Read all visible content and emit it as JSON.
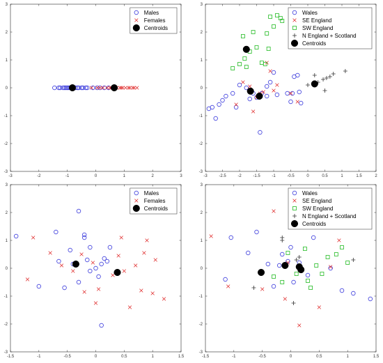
{
  "colors": {
    "males": "#3a3adc",
    "females": "#e03030",
    "se": "#e03030",
    "sw": "#22bb22",
    "nes": "#333333",
    "centroid": "#000000"
  },
  "chart_data": [
    {
      "type": "scatter",
      "xlim": [
        -3,
        3
      ],
      "ylim": [
        -3,
        3
      ],
      "xticks": [
        "-3",
        "-2",
        "-1",
        "0",
        "1",
        "2",
        "3"
      ],
      "yticks": [
        "-3",
        "-2",
        "-1",
        "0",
        "1",
        "2",
        "3"
      ],
      "legend_placement": "top-right",
      "series": [
        {
          "name": "Males",
          "marker": "circle",
          "color": "#3a3adc",
          "x": [
            -1.45,
            -1.3,
            -1.25,
            -1.15,
            -1.1,
            -1.05,
            -1.0,
            -0.95,
            -0.9,
            -0.85,
            -0.78,
            -0.72,
            -0.65,
            -0.6,
            -0.5,
            -0.45,
            -0.35,
            -0.3,
            -0.1,
            0.05,
            0.15,
            0.3,
            0.45
          ],
          "y": [
            0,
            0,
            0,
            0,
            0,
            0,
            0,
            0,
            0,
            0,
            0,
            0,
            0,
            0,
            0,
            0,
            0,
            0,
            0,
            0,
            0,
            0,
            0
          ]
        },
        {
          "name": "Females",
          "marker": "x",
          "color": "#e03030",
          "x": [
            0.05,
            0.15,
            0.25,
            0.4,
            0.5,
            0.55,
            0.6,
            0.7,
            0.75,
            0.85,
            0.9,
            0.95,
            1.05,
            1.15,
            1.2,
            1.3,
            1.35,
            1.45,
            -0.15
          ],
          "y": [
            0,
            0,
            0,
            0,
            0,
            0,
            0,
            0,
            0,
            0,
            0,
            0,
            0,
            0,
            0,
            0,
            0,
            0,
            0
          ]
        },
        {
          "name": "Centroids",
          "marker": "dot",
          "color": "#000000",
          "x": [
            -0.82,
            0.65
          ],
          "y": [
            0,
            0
          ]
        }
      ]
    },
    {
      "type": "scatter",
      "xlim": [
        -3,
        2
      ],
      "ylim": [
        -3,
        3
      ],
      "xticks": [
        "-3",
        "-2.5",
        "-2",
        "-1.5",
        "-1",
        "-0.5",
        "0",
        "0.5",
        "1",
        "1.5",
        "2"
      ],
      "yticks": [
        "-3",
        "-2",
        "-1",
        "0",
        "1",
        "2",
        "3"
      ],
      "legend_placement": "top-right",
      "series": [
        {
          "name": "Wales",
          "marker": "circle",
          "color": "#3a3adc",
          "x": [
            -2.9,
            -2.8,
            -2.7,
            -2.6,
            -2.5,
            -2.4,
            -2.2,
            -2.1,
            -2.0,
            -1.8,
            -1.7,
            -1.6,
            -1.5,
            -1.4,
            -1.35,
            -1.2,
            -1.1,
            -1.0,
            -0.9,
            -0.6,
            -0.5,
            -0.45,
            -0.4,
            -0.3,
            -0.25,
            -0.2,
            -1.2
          ],
          "y": [
            -0.75,
            -0.7,
            -1.1,
            -0.6,
            -0.45,
            -0.3,
            -0.2,
            -0.7,
            0.1,
            0.0,
            -0.4,
            -0.2,
            -0.35,
            -1.6,
            -0.2,
            -0.3,
            0.2,
            0.55,
            -0.25,
            -0.2,
            -0.5,
            -0.2,
            0.4,
            0.45,
            -0.15,
            -0.55,
            0.05
          ]
        },
        {
          "name": "SE England",
          "marker": "x",
          "color": "#e03030",
          "x": [
            -2.1,
            -1.9,
            -1.7,
            -1.6,
            -1.5,
            -1.4,
            -1.3,
            -1.2,
            -1.1,
            -1.0,
            -0.9,
            -0.5,
            -0.3
          ],
          "y": [
            -0.6,
            0.2,
            0.05,
            -0.85,
            -0.35,
            -0.2,
            -0.15,
            0.9,
            0.6,
            -0.1,
            0.1,
            -0.2,
            -0.5
          ]
        },
        {
          "name": "SW England",
          "marker": "square",
          "color": "#22bb22",
          "x": [
            -2.2,
            -2.0,
            -1.85,
            -1.7,
            -1.6,
            -1.5,
            -1.35,
            -1.25,
            -1.2,
            -1.15,
            -1.1,
            -1.0,
            -0.9,
            -0.8,
            -0.75,
            -1.9,
            -1.8
          ],
          "y": [
            0.7,
            0.85,
            1.05,
            1.3,
            2.0,
            1.45,
            0.9,
            0.85,
            1.95,
            1.4,
            2.55,
            2.2,
            2.6,
            2.5,
            2.4,
            1.85,
            0.75
          ]
        },
        {
          "name": "N England + Scotland",
          "marker": "plus",
          "color": "#333333",
          "x": [
            0.0,
            0.2,
            0.3,
            0.45,
            0.55,
            0.65,
            0.75,
            1.1,
            0.5
          ],
          "y": [
            0.1,
            0.45,
            0.2,
            0.3,
            0.35,
            0.4,
            0.5,
            0.6,
            -0.1
          ]
        },
        {
          "name": "Centroids",
          "marker": "dot",
          "color": "#000000",
          "x": [
            -1.8,
            -1.68,
            -1.42,
            0.2
          ],
          "y": [
            1.38,
            -0.12,
            -0.3,
            0.14
          ]
        }
      ]
    },
    {
      "type": "scatter",
      "xlim": [
        -1.5,
        1.5
      ],
      "ylim": [
        -3,
        3
      ],
      "xticks": [
        "-1.5",
        "-1",
        "-0.5",
        "0",
        "0.5",
        "1",
        "1.5"
      ],
      "yticks": [
        "-3",
        "-2",
        "-1",
        "0",
        "1",
        "2",
        "3"
      ],
      "legend_placement": "top-right",
      "series": [
        {
          "name": "Males",
          "marker": "circle",
          "color": "#3a3adc",
          "x": [
            -1.4,
            -1.0,
            -0.7,
            -0.65,
            -0.55,
            -0.45,
            -0.4,
            -0.3,
            -0.2,
            -0.15,
            -0.1,
            -0.1,
            0.0,
            0.05,
            0.1,
            0.15,
            0.2,
            0.25,
            -0.3,
            0.1,
            -0.2
          ],
          "y": [
            1.15,
            -0.65,
            1.3,
            0.25,
            -0.7,
            0.65,
            0.15,
            2.05,
            1.2,
            0.3,
            0.75,
            -0.1,
            0.0,
            -0.3,
            -2.05,
            0.35,
            0.25,
            0.75,
            -0.5,
            0.15,
            1.1
          ]
        },
        {
          "name": "Females",
          "marker": "x",
          "color": "#e03030",
          "x": [
            -1.2,
            -1.1,
            -0.8,
            -0.6,
            -0.4,
            -0.2,
            -0.05,
            0.0,
            0.05,
            0.3,
            0.4,
            0.45,
            0.5,
            0.6,
            0.7,
            0.8,
            0.85,
            0.9,
            1.0,
            1.05,
            1.2,
            -0.25
          ],
          "y": [
            -0.4,
            1.1,
            0.55,
            0.1,
            -0.1,
            -0.85,
            0.2,
            -1.25,
            -0.75,
            -0.25,
            0.45,
            1.1,
            -0.1,
            -1.4,
            0.1,
            -0.8,
            0.55,
            1.0,
            -0.9,
            0.3,
            -1.1,
            0.5
          ]
        },
        {
          "name": "Centroids",
          "marker": "dot",
          "color": "#000000",
          "x": [
            -0.35,
            0.38
          ],
          "y": [
            0.15,
            -0.15
          ]
        }
      ]
    },
    {
      "type": "scatter",
      "xlim": [
        -1.5,
        1.5
      ],
      "ylim": [
        -3,
        3
      ],
      "xticks": [
        "-1.5",
        "-1",
        "-0.5",
        "0",
        "0.5",
        "1",
        "1.5"
      ],
      "yticks": [
        "-3",
        "-2",
        "-1",
        "0",
        "1",
        "2",
        "3"
      ],
      "legend_placement": "top-right",
      "series": [
        {
          "name": "Wales",
          "marker": "circle",
          "color": "#3a3adc",
          "x": [
            -1.15,
            -1.05,
            -0.75,
            -0.6,
            -0.4,
            -0.3,
            -0.2,
            -0.15,
            0.0,
            0.05,
            0.15,
            0.3,
            0.4,
            0.7,
            0.9,
            1.1,
            1.4,
            -0.05
          ],
          "y": [
            -0.4,
            1.1,
            0.55,
            1.3,
            0.15,
            -0.65,
            0.1,
            0.5,
            0.75,
            -0.5,
            0.2,
            -0.25,
            1.1,
            0.0,
            -0.8,
            -0.9,
            -1.1,
            0.25
          ]
        },
        {
          "name": "SE England",
          "marker": "x",
          "color": "#e03030",
          "x": [
            -1.4,
            -1.1,
            -0.5,
            -0.3,
            -0.1,
            0.15,
            0.5,
            0.7,
            0.85,
            -0.05
          ],
          "y": [
            1.15,
            -0.65,
            -0.75,
            2.05,
            -1.1,
            -2.05,
            -1.4,
            0.05,
            1.0,
            0.2
          ]
        },
        {
          "name": "SW England",
          "marker": "square",
          "color": "#22bb22",
          "x": [
            -0.3,
            -0.15,
            -0.05,
            0.1,
            0.25,
            0.35,
            0.45,
            0.55,
            0.65,
            0.8,
            0.9,
            1.0,
            0.3
          ],
          "y": [
            -0.3,
            -0.5,
            0.55,
            -0.2,
            0.7,
            -0.7,
            0.1,
            -0.2,
            0.4,
            0.5,
            0.75,
            0.2,
            -0.45
          ]
        },
        {
          "name": "N England + Scotland",
          "marker": "plus",
          "color": "#333333",
          "x": [
            -0.65,
            -0.15,
            -0.15,
            0.05,
            0.1,
            0.2,
            0.15,
            1.1
          ],
          "y": [
            -0.7,
            1.1,
            1.0,
            -1.25,
            0.3,
            -0.1,
            0.4,
            0.3
          ]
        },
        {
          "name": "Centroids",
          "marker": "dot",
          "color": "#000000",
          "x": [
            -0.52,
            -0.1,
            0.15,
            0.18
          ],
          "y": [
            -0.15,
            0.1,
            0.05,
            -0.05
          ]
        }
      ]
    }
  ]
}
